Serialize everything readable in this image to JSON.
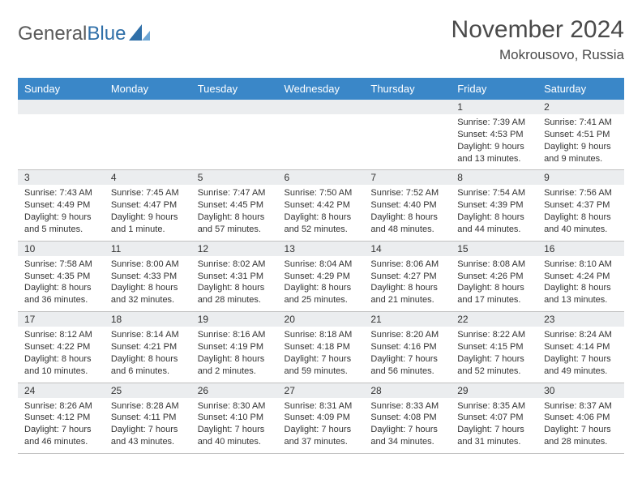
{
  "logo": {
    "word1": "General",
    "word2": "Blue"
  },
  "title": "November 2024",
  "subtitle": "Mokrousovo, Russia",
  "colors": {
    "header_bg": "#3a87c8",
    "header_fg": "#ffffff",
    "daynum_bg": "#ebedef",
    "border": "#c0c0c0",
    "text": "#333333",
    "logo_gray": "#5a5a5a",
    "logo_blue": "#2f6fa8"
  },
  "day_names": [
    "Sunday",
    "Monday",
    "Tuesday",
    "Wednesday",
    "Thursday",
    "Friday",
    "Saturday"
  ],
  "weeks": [
    [
      {
        "n": "",
        "lines": [
          "",
          "",
          "",
          ""
        ]
      },
      {
        "n": "",
        "lines": [
          "",
          "",
          "",
          ""
        ]
      },
      {
        "n": "",
        "lines": [
          "",
          "",
          "",
          ""
        ]
      },
      {
        "n": "",
        "lines": [
          "",
          "",
          "",
          ""
        ]
      },
      {
        "n": "",
        "lines": [
          "",
          "",
          "",
          ""
        ]
      },
      {
        "n": "1",
        "lines": [
          "Sunrise: 7:39 AM",
          "Sunset: 4:53 PM",
          "Daylight: 9 hours",
          "and 13 minutes."
        ]
      },
      {
        "n": "2",
        "lines": [
          "Sunrise: 7:41 AM",
          "Sunset: 4:51 PM",
          "Daylight: 9 hours",
          "and 9 minutes."
        ]
      }
    ],
    [
      {
        "n": "3",
        "lines": [
          "Sunrise: 7:43 AM",
          "Sunset: 4:49 PM",
          "Daylight: 9 hours",
          "and 5 minutes."
        ]
      },
      {
        "n": "4",
        "lines": [
          "Sunrise: 7:45 AM",
          "Sunset: 4:47 PM",
          "Daylight: 9 hours",
          "and 1 minute."
        ]
      },
      {
        "n": "5",
        "lines": [
          "Sunrise: 7:47 AM",
          "Sunset: 4:45 PM",
          "Daylight: 8 hours",
          "and 57 minutes."
        ]
      },
      {
        "n": "6",
        "lines": [
          "Sunrise: 7:50 AM",
          "Sunset: 4:42 PM",
          "Daylight: 8 hours",
          "and 52 minutes."
        ]
      },
      {
        "n": "7",
        "lines": [
          "Sunrise: 7:52 AM",
          "Sunset: 4:40 PM",
          "Daylight: 8 hours",
          "and 48 minutes."
        ]
      },
      {
        "n": "8",
        "lines": [
          "Sunrise: 7:54 AM",
          "Sunset: 4:39 PM",
          "Daylight: 8 hours",
          "and 44 minutes."
        ]
      },
      {
        "n": "9",
        "lines": [
          "Sunrise: 7:56 AM",
          "Sunset: 4:37 PM",
          "Daylight: 8 hours",
          "and 40 minutes."
        ]
      }
    ],
    [
      {
        "n": "10",
        "lines": [
          "Sunrise: 7:58 AM",
          "Sunset: 4:35 PM",
          "Daylight: 8 hours",
          "and 36 minutes."
        ]
      },
      {
        "n": "11",
        "lines": [
          "Sunrise: 8:00 AM",
          "Sunset: 4:33 PM",
          "Daylight: 8 hours",
          "and 32 minutes."
        ]
      },
      {
        "n": "12",
        "lines": [
          "Sunrise: 8:02 AM",
          "Sunset: 4:31 PM",
          "Daylight: 8 hours",
          "and 28 minutes."
        ]
      },
      {
        "n": "13",
        "lines": [
          "Sunrise: 8:04 AM",
          "Sunset: 4:29 PM",
          "Daylight: 8 hours",
          "and 25 minutes."
        ]
      },
      {
        "n": "14",
        "lines": [
          "Sunrise: 8:06 AM",
          "Sunset: 4:27 PM",
          "Daylight: 8 hours",
          "and 21 minutes."
        ]
      },
      {
        "n": "15",
        "lines": [
          "Sunrise: 8:08 AM",
          "Sunset: 4:26 PM",
          "Daylight: 8 hours",
          "and 17 minutes."
        ]
      },
      {
        "n": "16",
        "lines": [
          "Sunrise: 8:10 AM",
          "Sunset: 4:24 PM",
          "Daylight: 8 hours",
          "and 13 minutes."
        ]
      }
    ],
    [
      {
        "n": "17",
        "lines": [
          "Sunrise: 8:12 AM",
          "Sunset: 4:22 PM",
          "Daylight: 8 hours",
          "and 10 minutes."
        ]
      },
      {
        "n": "18",
        "lines": [
          "Sunrise: 8:14 AM",
          "Sunset: 4:21 PM",
          "Daylight: 8 hours",
          "and 6 minutes."
        ]
      },
      {
        "n": "19",
        "lines": [
          "Sunrise: 8:16 AM",
          "Sunset: 4:19 PM",
          "Daylight: 8 hours",
          "and 2 minutes."
        ]
      },
      {
        "n": "20",
        "lines": [
          "Sunrise: 8:18 AM",
          "Sunset: 4:18 PM",
          "Daylight: 7 hours",
          "and 59 minutes."
        ]
      },
      {
        "n": "21",
        "lines": [
          "Sunrise: 8:20 AM",
          "Sunset: 4:16 PM",
          "Daylight: 7 hours",
          "and 56 minutes."
        ]
      },
      {
        "n": "22",
        "lines": [
          "Sunrise: 8:22 AM",
          "Sunset: 4:15 PM",
          "Daylight: 7 hours",
          "and 52 minutes."
        ]
      },
      {
        "n": "23",
        "lines": [
          "Sunrise: 8:24 AM",
          "Sunset: 4:14 PM",
          "Daylight: 7 hours",
          "and 49 minutes."
        ]
      }
    ],
    [
      {
        "n": "24",
        "lines": [
          "Sunrise: 8:26 AM",
          "Sunset: 4:12 PM",
          "Daylight: 7 hours",
          "and 46 minutes."
        ]
      },
      {
        "n": "25",
        "lines": [
          "Sunrise: 8:28 AM",
          "Sunset: 4:11 PM",
          "Daylight: 7 hours",
          "and 43 minutes."
        ]
      },
      {
        "n": "26",
        "lines": [
          "Sunrise: 8:30 AM",
          "Sunset: 4:10 PM",
          "Daylight: 7 hours",
          "and 40 minutes."
        ]
      },
      {
        "n": "27",
        "lines": [
          "Sunrise: 8:31 AM",
          "Sunset: 4:09 PM",
          "Daylight: 7 hours",
          "and 37 minutes."
        ]
      },
      {
        "n": "28",
        "lines": [
          "Sunrise: 8:33 AM",
          "Sunset: 4:08 PM",
          "Daylight: 7 hours",
          "and 34 minutes."
        ]
      },
      {
        "n": "29",
        "lines": [
          "Sunrise: 8:35 AM",
          "Sunset: 4:07 PM",
          "Daylight: 7 hours",
          "and 31 minutes."
        ]
      },
      {
        "n": "30",
        "lines": [
          "Sunrise: 8:37 AM",
          "Sunset: 4:06 PM",
          "Daylight: 7 hours",
          "and 28 minutes."
        ]
      }
    ]
  ]
}
